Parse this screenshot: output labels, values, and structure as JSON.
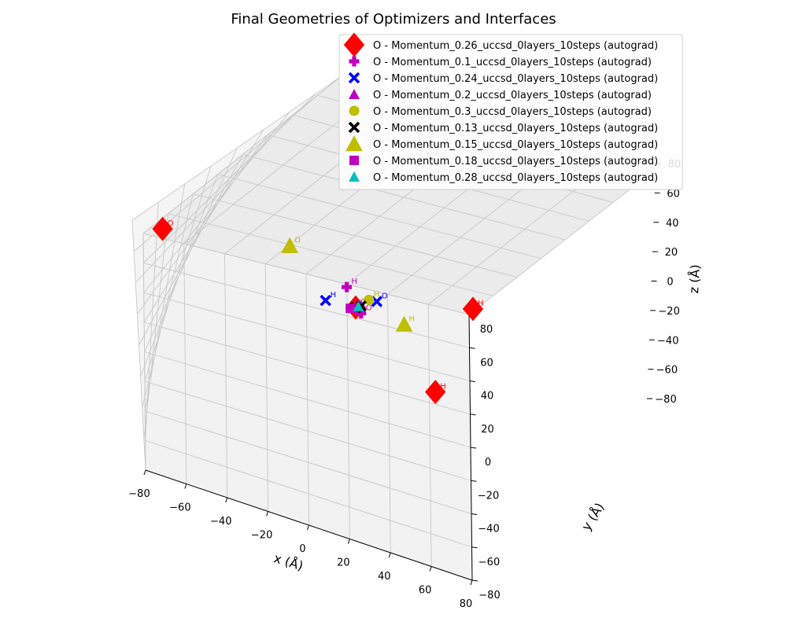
{
  "chart_data": {
    "type": "scatter",
    "projection": "3d",
    "title": "Final Geometries of Optimizers and Interfaces",
    "xlabel": "x (Å)",
    "ylabel": "y (Å)",
    "zlabel": "z (Å)",
    "xlim": [
      -80,
      80
    ],
    "ylim": [
      -80,
      80
    ],
    "zlim": [
      -80,
      80
    ],
    "xticks": [
      "−80",
      "−60",
      "−40",
      "−20",
      "0",
      "20",
      "40",
      "60",
      "80"
    ],
    "yticks": [
      "−80",
      "−60",
      "−40",
      "−20",
      "0",
      "20",
      "40",
      "60",
      "80"
    ],
    "zticks": [
      "−80",
      "−60",
      "−40",
      "−20",
      "0",
      "20",
      "40",
      "60",
      "80"
    ],
    "grid": true,
    "legend_position": "top-right",
    "series": [
      {
        "name": "O - Momentum_0.26_uccsd_0layers_10steps (autograd)",
        "marker": "diamond",
        "color": "#ff0000",
        "size": "large",
        "points": [
          {
            "x": 0,
            "y": 0,
            "z": 0,
            "label": "O"
          },
          {
            "x": 55,
            "y": 10,
            "z": -57,
            "label": "H"
          },
          {
            "x": 75,
            "y": 75,
            "z": -68,
            "label": "H"
          },
          {
            "x": -72,
            "y": -70,
            "z": 74,
            "label": "O"
          }
        ]
      },
      {
        "name": "O - Momentum_0.1_uccsd_0layers_10steps (autograd)",
        "marker": "plus",
        "color": "#bf00bf",
        "size": "medium",
        "points": [
          {
            "x": -8,
            "y": 4,
            "z": 8,
            "label": "H"
          },
          {
            "x": 4,
            "y": 6,
            "z": -10,
            "label": "O"
          }
        ]
      },
      {
        "name": "O - Momentum_0.24_uccsd_0layers_10steps (autograd)",
        "marker": "x",
        "color": "#0000ff",
        "size": "medium",
        "points": [
          {
            "x": -14,
            "y": -4,
            "z": 2,
            "label": "H"
          },
          {
            "x": 8,
            "y": 10,
            "z": -2,
            "label": "O"
          }
        ]
      },
      {
        "name": "O - Momentum_0.2_uccsd_0layers_10steps (autograd)",
        "marker": "triangle",
        "color": "#bf00bf",
        "size": "medium",
        "points": [
          {
            "x": 2,
            "y": 4,
            "z": -2,
            "label": ""
          }
        ]
      },
      {
        "name": "O - Momentum_0.3_uccsd_0layers_10steps (autograd)",
        "marker": "circle",
        "color": "#bfbf00",
        "size": "medium",
        "points": [
          {
            "x": 4,
            "y": 6,
            "z": 2,
            "label": "H"
          }
        ]
      },
      {
        "name": "O - Momentum_0.13_uccsd_0layers_10steps (autograd)",
        "marker": "x",
        "color": "#000000",
        "size": "medium",
        "points": [
          {
            "x": 0,
            "y": 0,
            "z": 0,
            "label": ""
          },
          {
            "x": 2,
            "y": 3,
            "z": -1,
            "label": ""
          }
        ]
      },
      {
        "name": "O - Momentum_0.15_uccsd_0layers_10steps (autograd)",
        "marker": "triangle",
        "color": "#bfbf00",
        "size": "large",
        "points": [
          {
            "x": -38,
            "y": -12,
            "z": 40,
            "label": "O"
          },
          {
            "x": 30,
            "y": 30,
            "z": -37,
            "label": "H"
          }
        ]
      },
      {
        "name": "O - Momentum_0.18_uccsd_0layers_10steps (autograd)",
        "marker": "square",
        "color": "#bf00bf",
        "size": "medium",
        "points": [
          {
            "x": -2,
            "y": 0,
            "z": -2,
            "label": "O"
          }
        ]
      },
      {
        "name": "O - Momentum_0.28_uccsd_0layers_10steps (autograd)",
        "marker": "triangle",
        "color": "#00bfbf",
        "size": "medium",
        "points": [
          {
            "x": 1,
            "y": 2,
            "z": -1,
            "label": ""
          }
        ]
      }
    ]
  }
}
